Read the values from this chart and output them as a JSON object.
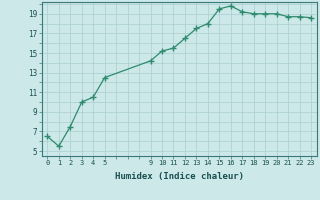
{
  "x": [
    0,
    1,
    2,
    3,
    4,
    5,
    9,
    10,
    11,
    12,
    13,
    14,
    15,
    16,
    17,
    18,
    19,
    20,
    21,
    22,
    23
  ],
  "y": [
    6.5,
    5.5,
    7.5,
    10.0,
    10.5,
    12.5,
    14.2,
    15.2,
    15.5,
    16.5,
    17.5,
    18.0,
    19.5,
    19.8,
    19.2,
    19.0,
    19.0,
    19.0,
    18.7,
    18.7,
    18.6
  ],
  "line_color": "#2e8b6e",
  "marker_color": "#2e8b6e",
  "bg_color": "#cce8e8",
  "grid_color": "#aacece",
  "xlabel": "Humidex (Indice chaleur)",
  "yticks": [
    5,
    7,
    9,
    11,
    13,
    15,
    17,
    19
  ],
  "xticks": [
    0,
    1,
    2,
    3,
    4,
    5,
    9,
    10,
    11,
    12,
    13,
    14,
    15,
    16,
    17,
    18,
    19,
    20,
    21,
    22,
    23
  ],
  "xlim": [
    -0.5,
    23.5
  ],
  "ylim": [
    4.5,
    20.2
  ]
}
